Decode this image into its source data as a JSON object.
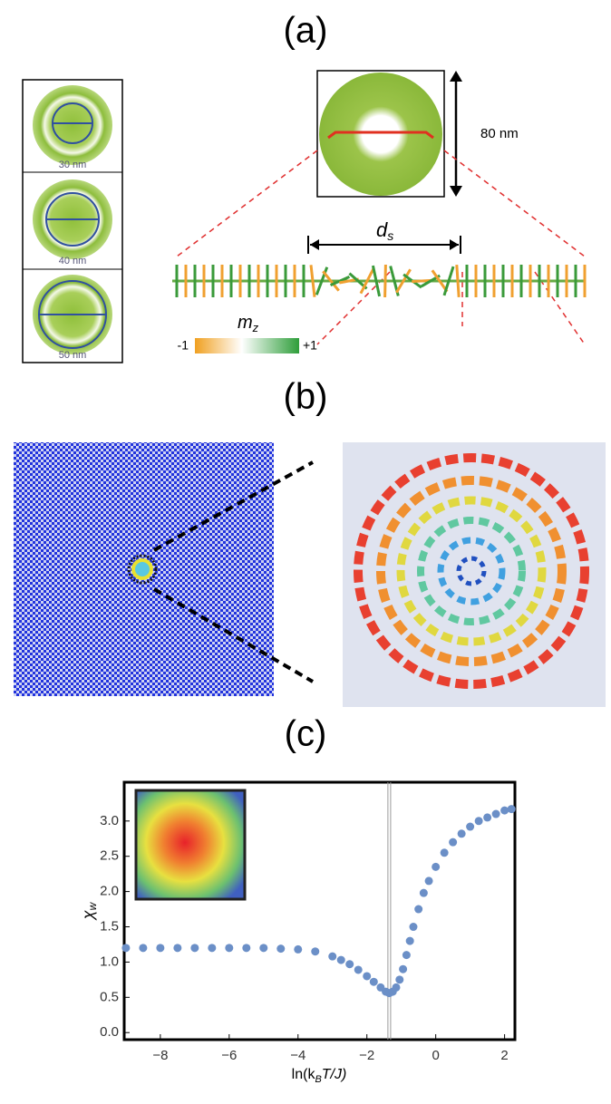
{
  "panels": {
    "a": {
      "label": "(a)",
      "sizes": [
        "30 nm",
        "40 nm",
        "50 nm"
      ],
      "diameter": "80 nm",
      "ds": "d",
      "ds_sub": "s",
      "mz": "m",
      "mz_sub": "z",
      "mz_min": "-1",
      "mz_max": "+1"
    },
    "b": {
      "label": "(b)"
    },
    "c": {
      "label": "(c)"
    }
  },
  "chart_data": {
    "type": "scatter",
    "xlabel": "ln(k",
    "xlabel_sub": "B",
    "xlabel_rest": "T/J)",
    "ylabel": "χ",
    "ylabel_sub": "w",
    "color": "#6b8fc7",
    "x": [
      -9,
      -8.5,
      -8,
      -7.5,
      -7,
      -6.5,
      -6,
      -5.5,
      -5,
      -4.5,
      -4,
      -3.5,
      -3,
      -2.75,
      -2.5,
      -2.25,
      -2,
      -1.8,
      -1.6,
      -1.45,
      -1.35,
      -1.25,
      -1.15,
      -1.05,
      -0.95,
      -0.85,
      -0.75,
      -0.65,
      -0.5,
      -0.35,
      -0.2,
      0,
      0.25,
      0.5,
      0.75,
      1,
      1.25,
      1.5,
      1.75,
      2,
      2.2
    ],
    "values": [
      1.2,
      1.2,
      1.2,
      1.2,
      1.2,
      1.2,
      1.2,
      1.2,
      1.2,
      1.19,
      1.18,
      1.15,
      1.08,
      1.03,
      0.97,
      0.89,
      0.8,
      0.72,
      0.64,
      0.58,
      0.56,
      0.58,
      0.64,
      0.75,
      0.9,
      1.1,
      1.3,
      1.5,
      1.75,
      1.98,
      2.15,
      2.35,
      2.55,
      2.7,
      2.82,
      2.92,
      3.0,
      3.05,
      3.1,
      3.15,
      3.17
    ],
    "vline": -1.35,
    "xlim": [
      -9.05,
      2.3
    ],
    "ylim": [
      -0.1,
      3.55
    ],
    "xticks": [
      {
        "value": -8,
        "label": "−8"
      },
      {
        "value": -6,
        "label": "−6"
      },
      {
        "value": -4,
        "label": "−4"
      },
      {
        "value": -2,
        "label": "−2"
      },
      0,
      2
    ],
    "yticks": [
      {
        "value": 0,
        "label": "0.0"
      },
      0.5,
      {
        "value": 1,
        "label": "1.0"
      },
      1.5,
      {
        "value": 2,
        "label": "2.0"
      },
      2.5,
      {
        "value": 3,
        "label": "3.0"
      }
    ]
  }
}
